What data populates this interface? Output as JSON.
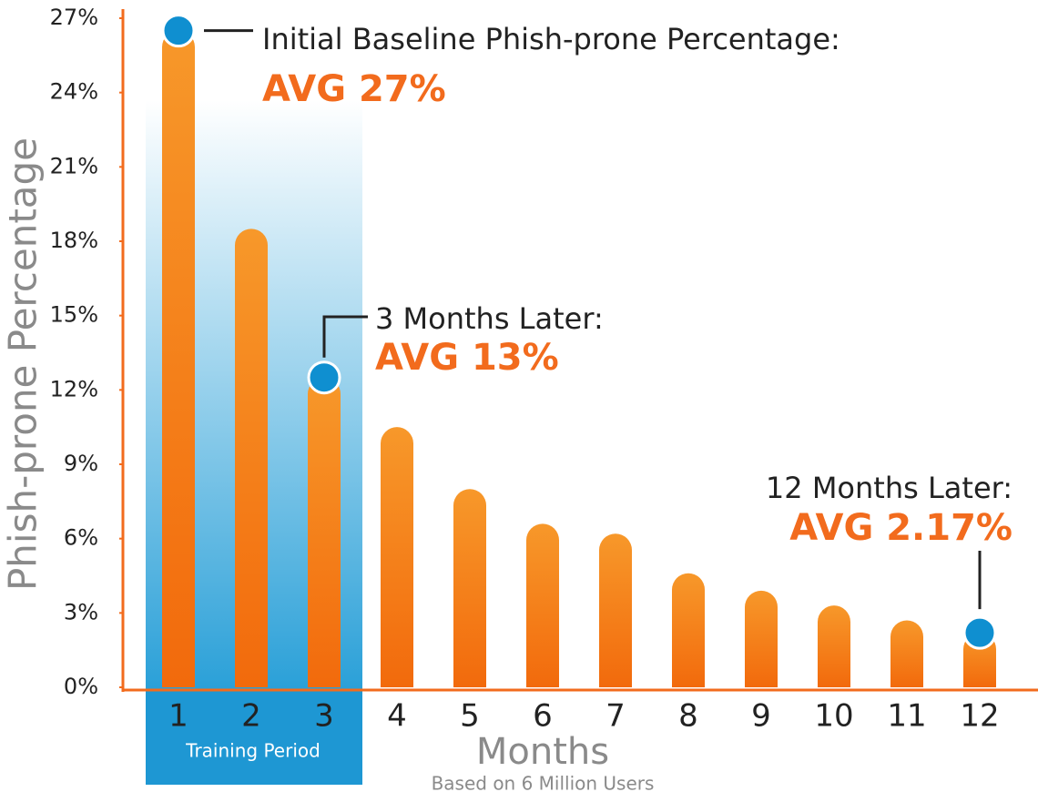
{
  "chart_data": {
    "type": "bar",
    "y_label": "Phish-prone Percentage",
    "x_label": "Months",
    "x_sublabel": "Based on 6 Million Users",
    "period_label": "Training Period",
    "categories": [
      "1",
      "2",
      "3",
      "4",
      "5",
      "6",
      "7",
      "8",
      "9",
      "10",
      "11",
      "12"
    ],
    "values": [
      26.5,
      18.5,
      12.5,
      10.5,
      8,
      6.6,
      6.2,
      4.6,
      3.9,
      3.3,
      2.7,
      2.2
    ],
    "color": "#f57a1f",
    "ylim": [
      0,
      27
    ],
    "yticks": [
      {
        "value": 0,
        "label": "0%"
      },
      {
        "value": 3,
        "label": "3%"
      },
      {
        "value": 6,
        "label": "6%"
      },
      {
        "value": 9,
        "label": "9%"
      },
      {
        "value": 12,
        "label": "12%"
      },
      {
        "value": 15,
        "label": "15%"
      },
      {
        "value": 18,
        "label": "18%"
      },
      {
        "value": 21,
        "label": "21%"
      },
      {
        "value": 24,
        "label": "24%"
      },
      {
        "value": 27,
        "label": "27%"
      }
    ],
    "annotations": [
      {
        "category": "1",
        "label": "Initial Baseline Phish-prone Percentage:",
        "value_label": "AVG 27%"
      },
      {
        "category": "3",
        "label": "3 Months Later:",
        "value_label": "AVG 13%"
      },
      {
        "category": "12",
        "label": "12 Months Later:",
        "value_label": "AVG 2.17%"
      }
    ]
  }
}
